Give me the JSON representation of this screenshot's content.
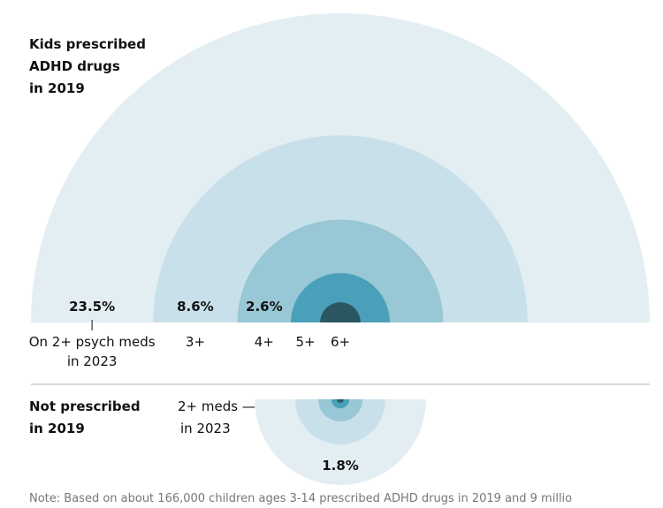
{
  "chart_data": [
    {
      "type": "semicircle",
      "direction": "up",
      "title": [
        "Kids prescribed",
        "ADHD drugs",
        "in 2019"
      ],
      "categories": [
        [
          "On 2+ psych meds",
          "in 2023"
        ],
        [
          "3+"
        ],
        [
          "4+"
        ],
        [
          "5+"
        ],
        [
          "6+"
        ]
      ],
      "values": [
        23.5,
        8.6,
        2.6,
        0.6,
        0.1
      ],
      "value_labels": [
        "23.5%",
        "8.6%",
        "2.6%",
        null,
        null
      ],
      "colors": [
        "#e3eef3",
        "#c8e0ea",
        "#98c7d5",
        "#4aa0b8",
        "#2b5762"
      ]
    },
    {
      "type": "semicircle",
      "direction": "down",
      "title": [
        "Not prescribed",
        "in 2019"
      ],
      "annotation": [
        "2+ meds —",
        "in 2023"
      ],
      "values": [
        1.8,
        0.5,
        0.12,
        0.02,
        0.003
      ],
      "value_labels": [
        "1.8%",
        null,
        null,
        null,
        null
      ],
      "colors": [
        "#e3eef3",
        "#c8e0ea",
        "#98c7d5",
        "#4aa0b8",
        "#2b5762"
      ]
    }
  ],
  "note": "Note: Based on about 166,000 children ages 3-14 prescribed ADHD drugs in 2019 and 9 millio"
}
